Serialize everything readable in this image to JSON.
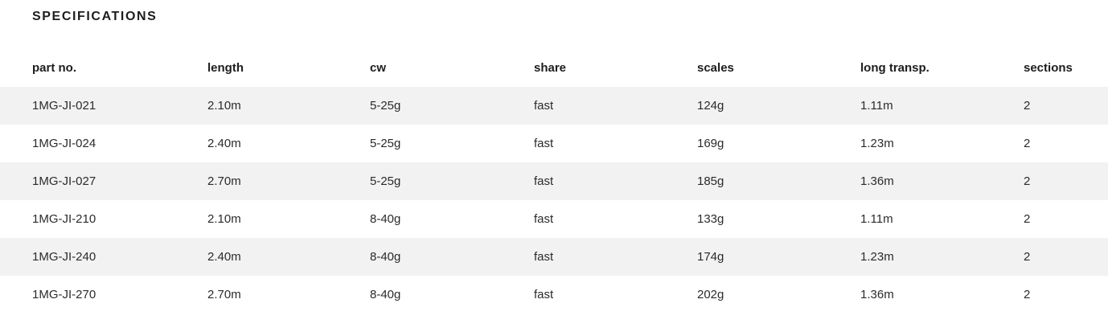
{
  "page": {
    "title": "SPECIFICATIONS"
  },
  "table": {
    "columns": [
      {
        "key": "part-no",
        "label": "part no."
      },
      {
        "key": "length",
        "label": "length"
      },
      {
        "key": "cw",
        "label": "cw"
      },
      {
        "key": "share",
        "label": "share"
      },
      {
        "key": "scales",
        "label": "scales"
      },
      {
        "key": "long-transp",
        "label": "long transp."
      },
      {
        "key": "sections",
        "label": "sections"
      }
    ],
    "rows": [
      [
        "1MG-JI-021",
        "2.10m",
        "5-25g",
        "fast",
        "124g",
        "1.11m",
        "2"
      ],
      [
        "1MG-JI-024",
        "2.40m",
        "5-25g",
        "fast",
        "169g",
        "1.23m",
        "2"
      ],
      [
        "1MG-JI-027",
        "2.70m",
        "5-25g",
        "fast",
        "185g",
        "1.36m",
        "2"
      ],
      [
        "1MG-JI-210",
        "2.10m",
        "8-40g",
        "fast",
        "133g",
        "1.11m",
        "2"
      ],
      [
        "1MG-JI-240",
        "2.40m",
        "8-40g",
        "fast",
        "174g",
        "1.23m",
        "2"
      ],
      [
        "1MG-JI-270",
        "2.70m",
        "8-40g",
        "fast",
        "202g",
        "1.36m",
        "2"
      ]
    ]
  },
  "colors": {
    "background": "#ffffff",
    "stripe": "#f2f2f2",
    "heading": "#1d1d1d",
    "text": "#2b2b2b"
  }
}
